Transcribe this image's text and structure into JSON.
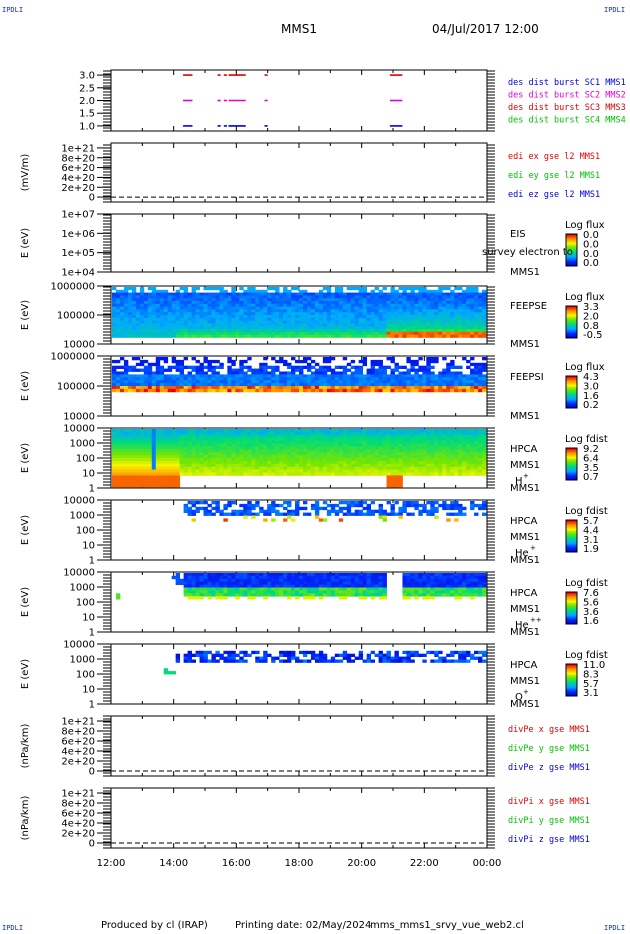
{
  "corner_label": "IPDLI",
  "header": {
    "mission": "MMS1",
    "date": "04/Jul/2017 12:00"
  },
  "footer": {
    "produced_by": "Produced by cl (IRAP)",
    "printing_date": "Printing date: 02/May/2024",
    "script": "mms_mms1_srvy_vue_web2.cl"
  },
  "colors": {
    "red": "#e00000",
    "magenta": "#e000e0",
    "blue": "#0000e0",
    "green": "#00c000",
    "dark_blue": "#001090"
  },
  "chart_data": [
    {
      "type": "line",
      "id": "burst",
      "ylim": [
        0.8,
        3.2
      ],
      "yticks": [
        "3.0",
        "2.5",
        "2.0",
        "1.5",
        "1.0"
      ],
      "ytick_values": [
        3.0,
        2.5,
        2.0,
        1.5,
        1.0
      ],
      "ylabel": "",
      "legend": [
        {
          "label": "des dist burst SC1 MMS1",
          "color": "#0000e0"
        },
        {
          "label": "des dist burst SC2 MMS2",
          "color": "#e000e0"
        },
        {
          "label": "des dist burst SC3 MMS3",
          "color": "#e00000"
        },
        {
          "label": "des dist burst SC4 MMS4",
          "color": "#00c000"
        }
      ],
      "series": [
        {
          "level": 3.0,
          "color": "#e00000",
          "intervals": [
            [
              14.3,
              14.6
            ],
            [
              15.4,
              15.5
            ],
            [
              15.6,
              15.7
            ],
            [
              15.75,
              16.3
            ],
            [
              16.9,
              17.0
            ],
            [
              20.9,
              21.3
            ]
          ]
        },
        {
          "level": 2.0,
          "color": "#e000e0",
          "intervals": [
            [
              14.3,
              14.6
            ],
            [
              15.4,
              15.5
            ],
            [
              15.6,
              15.7
            ],
            [
              15.75,
              16.3
            ],
            [
              16.9,
              17.0
            ],
            [
              20.9,
              21.3
            ]
          ]
        },
        {
          "level": 1.0,
          "color": "#0000e0",
          "intervals": [
            [
              14.3,
              14.6
            ],
            [
              15.4,
              15.5
            ],
            [
              15.6,
              15.7
            ],
            [
              15.75,
              16.3
            ],
            [
              16.9,
              17.0
            ],
            [
              20.9,
              21.3
            ]
          ]
        }
      ]
    },
    {
      "type": "line",
      "id": "edi",
      "ylabel": "(mV/m)",
      "yticks": [
        "1e+21",
        "8e+20",
        "6e+20",
        "4e+20",
        "2e+20",
        "0"
      ],
      "ytick_values": [
        1e+21,
        8e+20,
        6e+20,
        4e+20,
        2e+20,
        0
      ],
      "ylim": [
        -1e+20,
        1.1e+21
      ],
      "legend": [
        {
          "label": "edi ex gse l2 MMS1",
          "color": "#e00000"
        },
        {
          "label": "edi ey gse l2 MMS1",
          "color": "#00c000"
        },
        {
          "label": "edi ez gse l2 MMS1",
          "color": "#0000e0"
        }
      ]
    },
    {
      "type": "heatmap",
      "id": "eis",
      "ylabel": "E (eV)",
      "yticks": [
        "1e+07",
        "1e+06",
        "1e+05",
        "1e+04"
      ],
      "instrument": "EIS",
      "spacecraft": "MMS1",
      "overlay_text": "survey electron to",
      "colorbar": {
        "title": "Log flux",
        "labels": [
          "0.0",
          "0.0",
          "0.0",
          "0.0"
        ]
      }
    },
    {
      "type": "heatmap",
      "id": "feepse",
      "ylabel": "E (eV)",
      "yticks": [
        "1000000",
        "100000",
        "10000"
      ],
      "instrument": "FEEPSE",
      "spacecraft": "MMS1",
      "colorbar": {
        "title": "Log flux",
        "labels": [
          "3.3",
          "2.0",
          "0.8",
          "-0.5"
        ]
      }
    },
    {
      "type": "heatmap",
      "id": "feepsi",
      "ylabel": "E (eV)",
      "yticks": [
        "1000000",
        "100000",
        "10000"
      ],
      "instrument": "FEEPSI",
      "spacecraft": "MMS1",
      "colorbar": {
        "title": "Log flux",
        "labels": [
          "4.3",
          "3.0",
          "1.6",
          "0.2"
        ]
      }
    },
    {
      "type": "heatmap",
      "id": "hpca_h",
      "ylabel": "E (eV)",
      "yticks": [
        "10000",
        "1000",
        "100",
        "10",
        "1"
      ],
      "instrument": "HPCA",
      "spacecraft": "MMS1",
      "species": "H",
      "charge": "+",
      "colorbar": {
        "title": "Log fdist",
        "labels": [
          "9.2",
          "6.4",
          "3.5",
          "0.7"
        ]
      }
    },
    {
      "type": "heatmap",
      "id": "hpca_he",
      "ylabel": "E (eV)",
      "yticks": [
        "10000",
        "1000",
        "100",
        "10",
        "1"
      ],
      "instrument": "HPCA",
      "spacecraft": "MMS1",
      "species": "He",
      "charge": "+",
      "colorbar": {
        "title": "Log fdist",
        "labels": [
          "5.7",
          "4.4",
          "3.1",
          "1.9"
        ]
      }
    },
    {
      "type": "heatmap",
      "id": "hpca_he2",
      "ylabel": "E (eV)",
      "yticks": [
        "10000",
        "1000",
        "100",
        "10",
        "1"
      ],
      "instrument": "HPCA",
      "spacecraft": "MMS1",
      "species": "He",
      "charge": "++",
      "colorbar": {
        "title": "Log fdist",
        "labels": [
          "7.6",
          "5.6",
          "3.6",
          "1.6"
        ]
      }
    },
    {
      "type": "heatmap",
      "id": "hpca_o",
      "ylabel": "E (eV)",
      "yticks": [
        "10000",
        "1000",
        "100",
        "10",
        "1"
      ],
      "instrument": "HPCA",
      "spacecraft": "MMS1",
      "species": "O",
      "charge": "+",
      "colorbar": {
        "title": "Log fdist",
        "labels": [
          "11.0",
          "8.3",
          "5.7",
          "3.1"
        ]
      }
    },
    {
      "type": "line",
      "id": "divpe",
      "ylabel": "(nPa/km)",
      "yticks": [
        "1e+21",
        "8e+20",
        "6e+20",
        "4e+20",
        "2e+20",
        "0"
      ],
      "ytick_values": [
        1e+21,
        8e+20,
        6e+20,
        4e+20,
        2e+20,
        0
      ],
      "ylim": [
        -1e+20,
        1.1e+21
      ],
      "legend": [
        {
          "label": "divPe x gse MMS1",
          "color": "#e00000"
        },
        {
          "label": "divPe y gse MMS1",
          "color": "#00c000"
        },
        {
          "label": "divPe z gse MMS1",
          "color": "#0000e0"
        }
      ]
    },
    {
      "type": "line",
      "id": "divpi",
      "ylabel": "(nPa/km)",
      "yticks": [
        "1e+21",
        "8e+20",
        "6e+20",
        "4e+20",
        "2e+20",
        "0"
      ],
      "ytick_values": [
        1e+21,
        8e+20,
        6e+20,
        4e+20,
        2e+20,
        0
      ],
      "ylim": [
        -1e+20,
        1.1e+21
      ],
      "legend": [
        {
          "label": "divPi x gse MMS1",
          "color": "#e00000"
        },
        {
          "label": "divPi y gse MMS1",
          "color": "#00c000"
        },
        {
          "label": "divPi z gse MMS1",
          "color": "#0000e0"
        }
      ]
    }
  ],
  "x_axis": {
    "ticks": [
      "12:00",
      "14:00",
      "16:00",
      "18:00",
      "20:00",
      "22:00",
      "00:00"
    ],
    "range_hours": [
      12,
      24
    ]
  }
}
